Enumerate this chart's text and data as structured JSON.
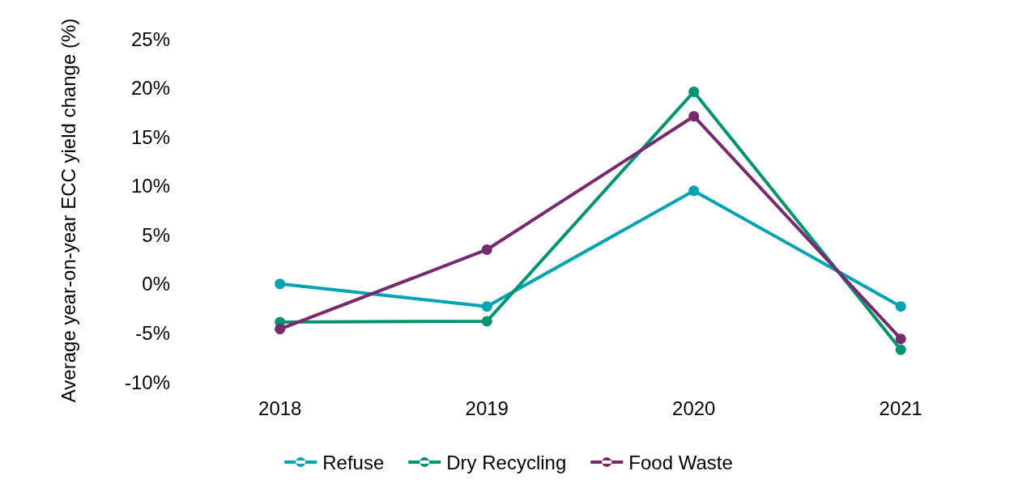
{
  "chart_data": {
    "type": "line",
    "ylabel": "Average year-on-year ECC yield change (%)",
    "categories": [
      "2018",
      "2019",
      "2020",
      "2021"
    ],
    "series": [
      {
        "name": "Refuse",
        "color": "#00a3b4",
        "values": [
          0,
          -2.3,
          9.5,
          -2.3
        ]
      },
      {
        "name": "Dry Recycling",
        "color": "#00936f",
        "values": [
          -3.9,
          -3.8,
          19.6,
          -6.7
        ]
      },
      {
        "name": "Food Waste",
        "color": "#782a6e",
        "values": [
          -4.6,
          3.5,
          17.1,
          -5.6
        ]
      }
    ],
    "ylim": [
      -10,
      25
    ],
    "yticks": [
      {
        "value": -10,
        "label": "-10%"
      },
      {
        "value": -5,
        "label": "-5%"
      },
      {
        "value": 0,
        "label": "0%"
      },
      {
        "value": 5,
        "label": "5%"
      },
      {
        "value": 10,
        "label": "10%"
      },
      {
        "value": 15,
        "label": "15%"
      },
      {
        "value": 20,
        "label": "20%"
      },
      {
        "value": 25,
        "label": "25%"
      }
    ],
    "grid": false,
    "legend": "bottom",
    "marker": "circle",
    "line_style": "solid"
  }
}
